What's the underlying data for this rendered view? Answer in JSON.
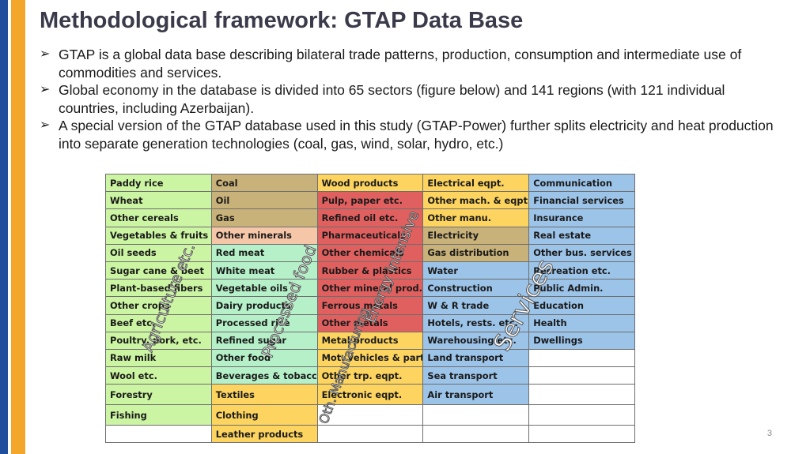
{
  "slide": {
    "title": "Methodological framework: GTAP Data Base",
    "page_number": "3",
    "bullets": [
      "GTAP is a global data base describing bilateral trade patterns, production, consumption and intermediate use of commodities and services.",
      "Global economy in the database is divided into 65 sectors (figure below) and 141 regions (with 121 individual countries, including Azerbaijan).",
      "A special version of the GTAP database used in this study (GTAP-Power) further splits electricity and heat production into separate generation technologies (coal, gas, wind, solar, hydro, etc.)"
    ]
  },
  "table": {
    "rows": [
      [
        "Paddy rice",
        "Coal",
        "Wood products",
        "Electrical eqpt.",
        "Communication"
      ],
      [
        "Wheat",
        "Oil",
        "Pulp, paper etc.",
        "Other mach. & eqpt.",
        "Financial services"
      ],
      [
        "Other cereals",
        "Gas",
        "Refined oil etc.",
        "Other manu.",
        "Insurance"
      ],
      [
        "Vegetables & fruits",
        "Other minerals",
        "Pharmaceuticals",
        "Electricity",
        "Real estate"
      ],
      [
        "Oil seeds",
        "Red meat",
        "Other chemicals",
        "Gas distribution",
        "Other bus. services"
      ],
      [
        "Sugar cane & beet",
        "White meat",
        "Rubber & plastics",
        "Water",
        "Recreation etc."
      ],
      [
        "Plant-based fibers",
        "Vegetable oils",
        "Other mineral prod.",
        "Construction",
        "Public Admin."
      ],
      [
        "Other crops",
        "Dairy products",
        "Ferrous metals",
        "W & R trade",
        "Education"
      ],
      [
        "Beef etc.",
        "Processed rice",
        "Other metals",
        "Hotels, rests. etc.",
        "Health"
      ],
      [
        "Poultry, pork, etc.",
        "Refined sugar",
        "Metal products",
        "Warehousing etc.",
        "Dwellings"
      ],
      [
        "Raw milk",
        "Other food",
        "Mot. vehicles & parts",
        "Land transport",
        ""
      ],
      [
        "Wool etc.",
        "Beverages & tobacco",
        "Other trp. eqpt.",
        "Sea transport",
        ""
      ],
      [
        "Forestry",
        "Textiles",
        "Electronic eqpt.",
        "Air transport",
        ""
      ],
      [
        "Fishing",
        "Clothing",
        "",
        "",
        ""
      ],
      [
        "",
        "Leather products",
        "",
        "",
        ""
      ]
    ],
    "colors": {
      "agriculture": "#ccf5a3",
      "processed_food": "#b5f0c8",
      "extraction": "#c8b27a",
      "other_minerals": "#f5c6a8",
      "manufacturing": "#fcd45f",
      "energy_intensive": "#e06060",
      "services": "#9cc3e8"
    }
  },
  "overlays": {
    "agriculture": "Agriculture etc.",
    "processed_food": "Processed food",
    "energy_intensive": "Energy intensive",
    "manufacturing": "Oth. Manufacturing",
    "services": "Services"
  }
}
